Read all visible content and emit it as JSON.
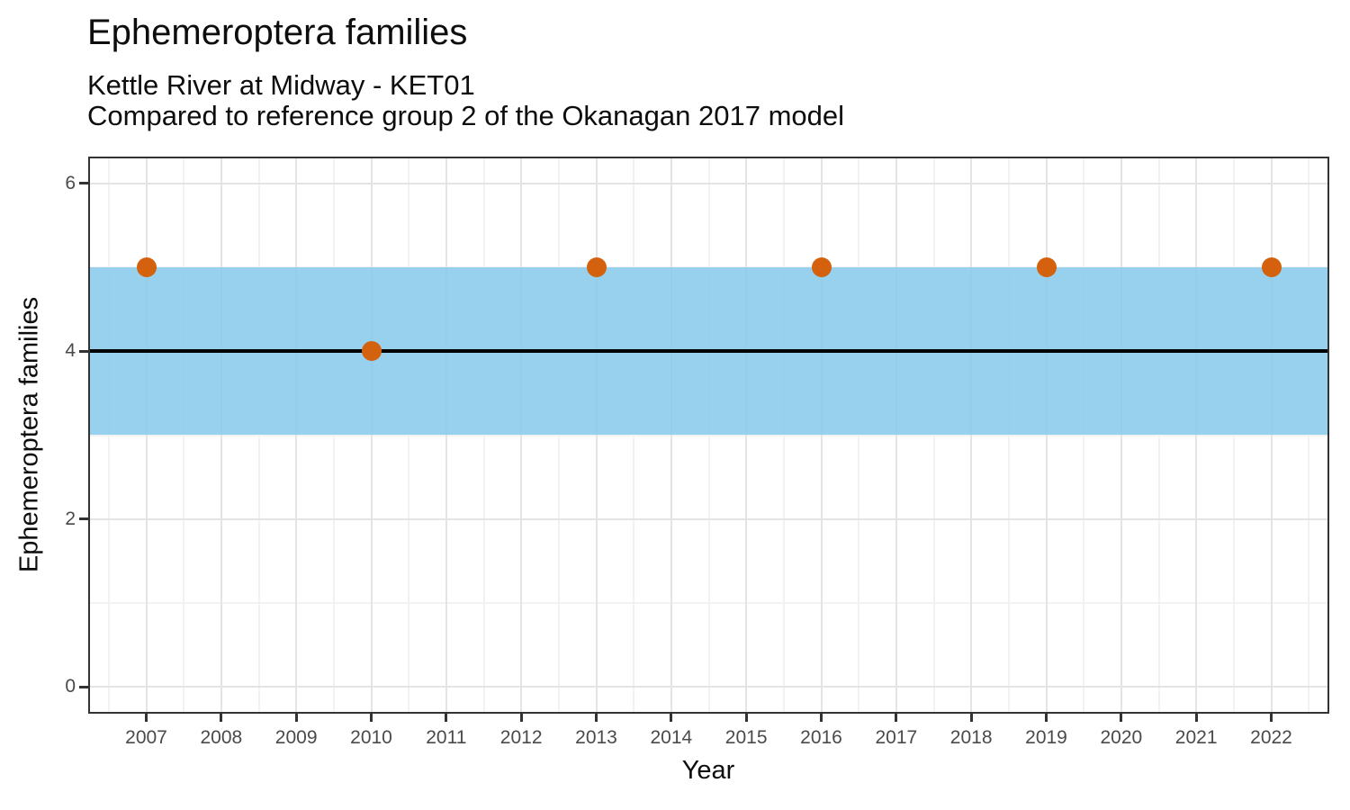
{
  "header": {
    "title": "Ephemeroptera families",
    "subtitle1": "Kettle River at Midway - KET01",
    "subtitle2": "Compared to reference group 2 of the Okanagan 2017 model"
  },
  "axes": {
    "x_title": "Year",
    "y_title": "Ephemeroptera families"
  },
  "chart_data": {
    "type": "scatter",
    "title": "Ephemeroptera families",
    "subtitle": [
      "Kettle River at Midway - KET01",
      "Compared to reference group 2 of the Okanagan 2017 model"
    ],
    "xlabel": "Year",
    "ylabel": "Ephemeroptera families",
    "x_ticks": [
      2007,
      2008,
      2009,
      2010,
      2011,
      2012,
      2013,
      2014,
      2015,
      2016,
      2017,
      2018,
      2019,
      2020,
      2021,
      2022
    ],
    "y_ticks": [
      0,
      2,
      4,
      6
    ],
    "y_minor_ticks": [
      1,
      3,
      5
    ],
    "xlim": [
      2006.25,
      2022.75
    ],
    "ylim": [
      -0.3,
      6.3
    ],
    "grid": "major+minor, light gray on white, dark panel border",
    "legend": "none",
    "series": [
      {
        "name": "observed-ephemeroptera-families",
        "x": [
          2007,
          2010,
          2013,
          2016,
          2019,
          2022
        ],
        "y": [
          5,
          4,
          5,
          5,
          5,
          5
        ],
        "color": "#d4610d"
      }
    ],
    "reference_band": {
      "ymin": 3,
      "ymax": 5,
      "color_rgba": "rgba(137,203,235,0.88)"
    },
    "reference_line": {
      "y": 4,
      "color": "#000000"
    }
  },
  "colors": {
    "point": "#d4610d",
    "band": "rgba(137,203,235,0.88)",
    "refline": "#000000",
    "panel_border": "#333333",
    "grid_major": "#e4e4e4",
    "grid_minor": "#f2f2f2",
    "tick": "#333333",
    "tick_label": "#4a4a4a"
  }
}
